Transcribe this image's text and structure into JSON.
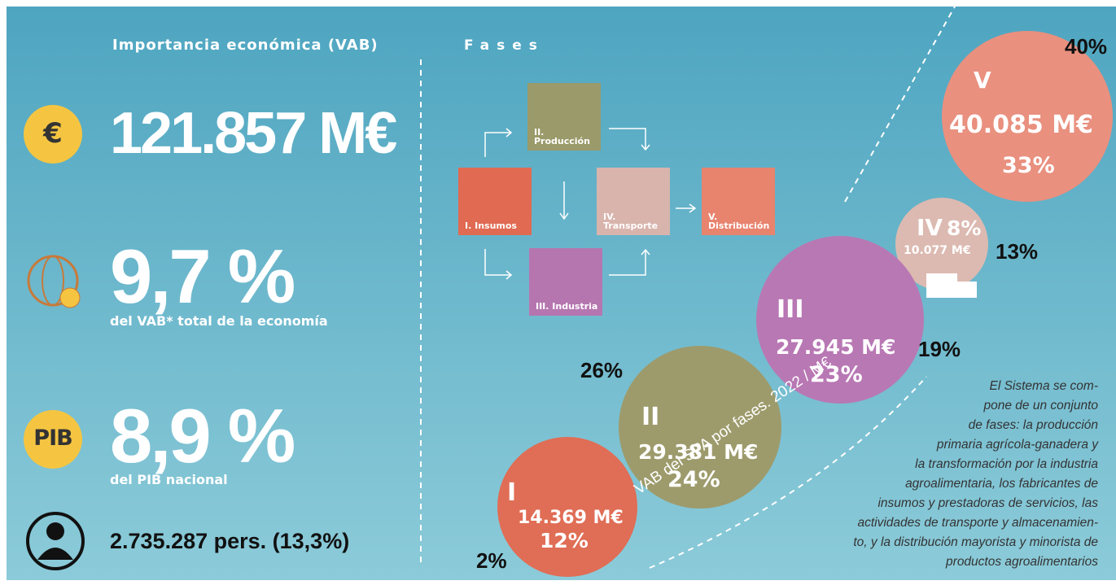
{
  "left": {
    "title": "Importancia económica (VAB)",
    "euro_icon": "€",
    "vab": "121.857 M€",
    "share_vab": "9,7 %",
    "share_vab_note": "del VAB* total de la economía",
    "pib_icon": "PIB",
    "share_pib": "8,9 %",
    "share_pib_note": "del PIB nacional",
    "employment": "2.735.287 pers. (13,3%)"
  },
  "phases": {
    "title": "Fases",
    "boxes": [
      {
        "label": "I. Insumos"
      },
      {
        "label": "II. Producción"
      },
      {
        "label": "III. Industria"
      },
      {
        "label": "IV. Transporte"
      },
      {
        "label": "V. Distribución"
      }
    ]
  },
  "circles": [
    {
      "numeral": "I",
      "amount": "14.369 M€",
      "share": "12%"
    },
    {
      "numeral": "II",
      "amount": "29.381 M€",
      "share": "24%"
    },
    {
      "numeral": "III",
      "amount": "27.945 M€",
      "share": "23%"
    },
    {
      "numeral": "IV",
      "share": "8%",
      "amount": "10.077 M€"
    },
    {
      "numeral": "V",
      "amount": "40.085 M€",
      "share": "33%"
    }
  ],
  "overlay_labels": [
    "40%",
    "13%",
    "19%",
    "26%",
    "2%"
  ],
  "caption": "VAB del SPA por fases. 2022 / M€",
  "description": [
    "El Sistema se com-",
    "pone de un conjunto",
    "de fases: la producción",
    "primaria agrícola-ganadera y",
    "la transformación por la industria",
    "agroalimentaria, los fabricantes de",
    "insumos y prestadoras de servicios, las",
    "actividades de transporte y almacenamien-",
    "to, y la distribución mayorista y minorista de",
    "productos agroalimentarios"
  ]
}
